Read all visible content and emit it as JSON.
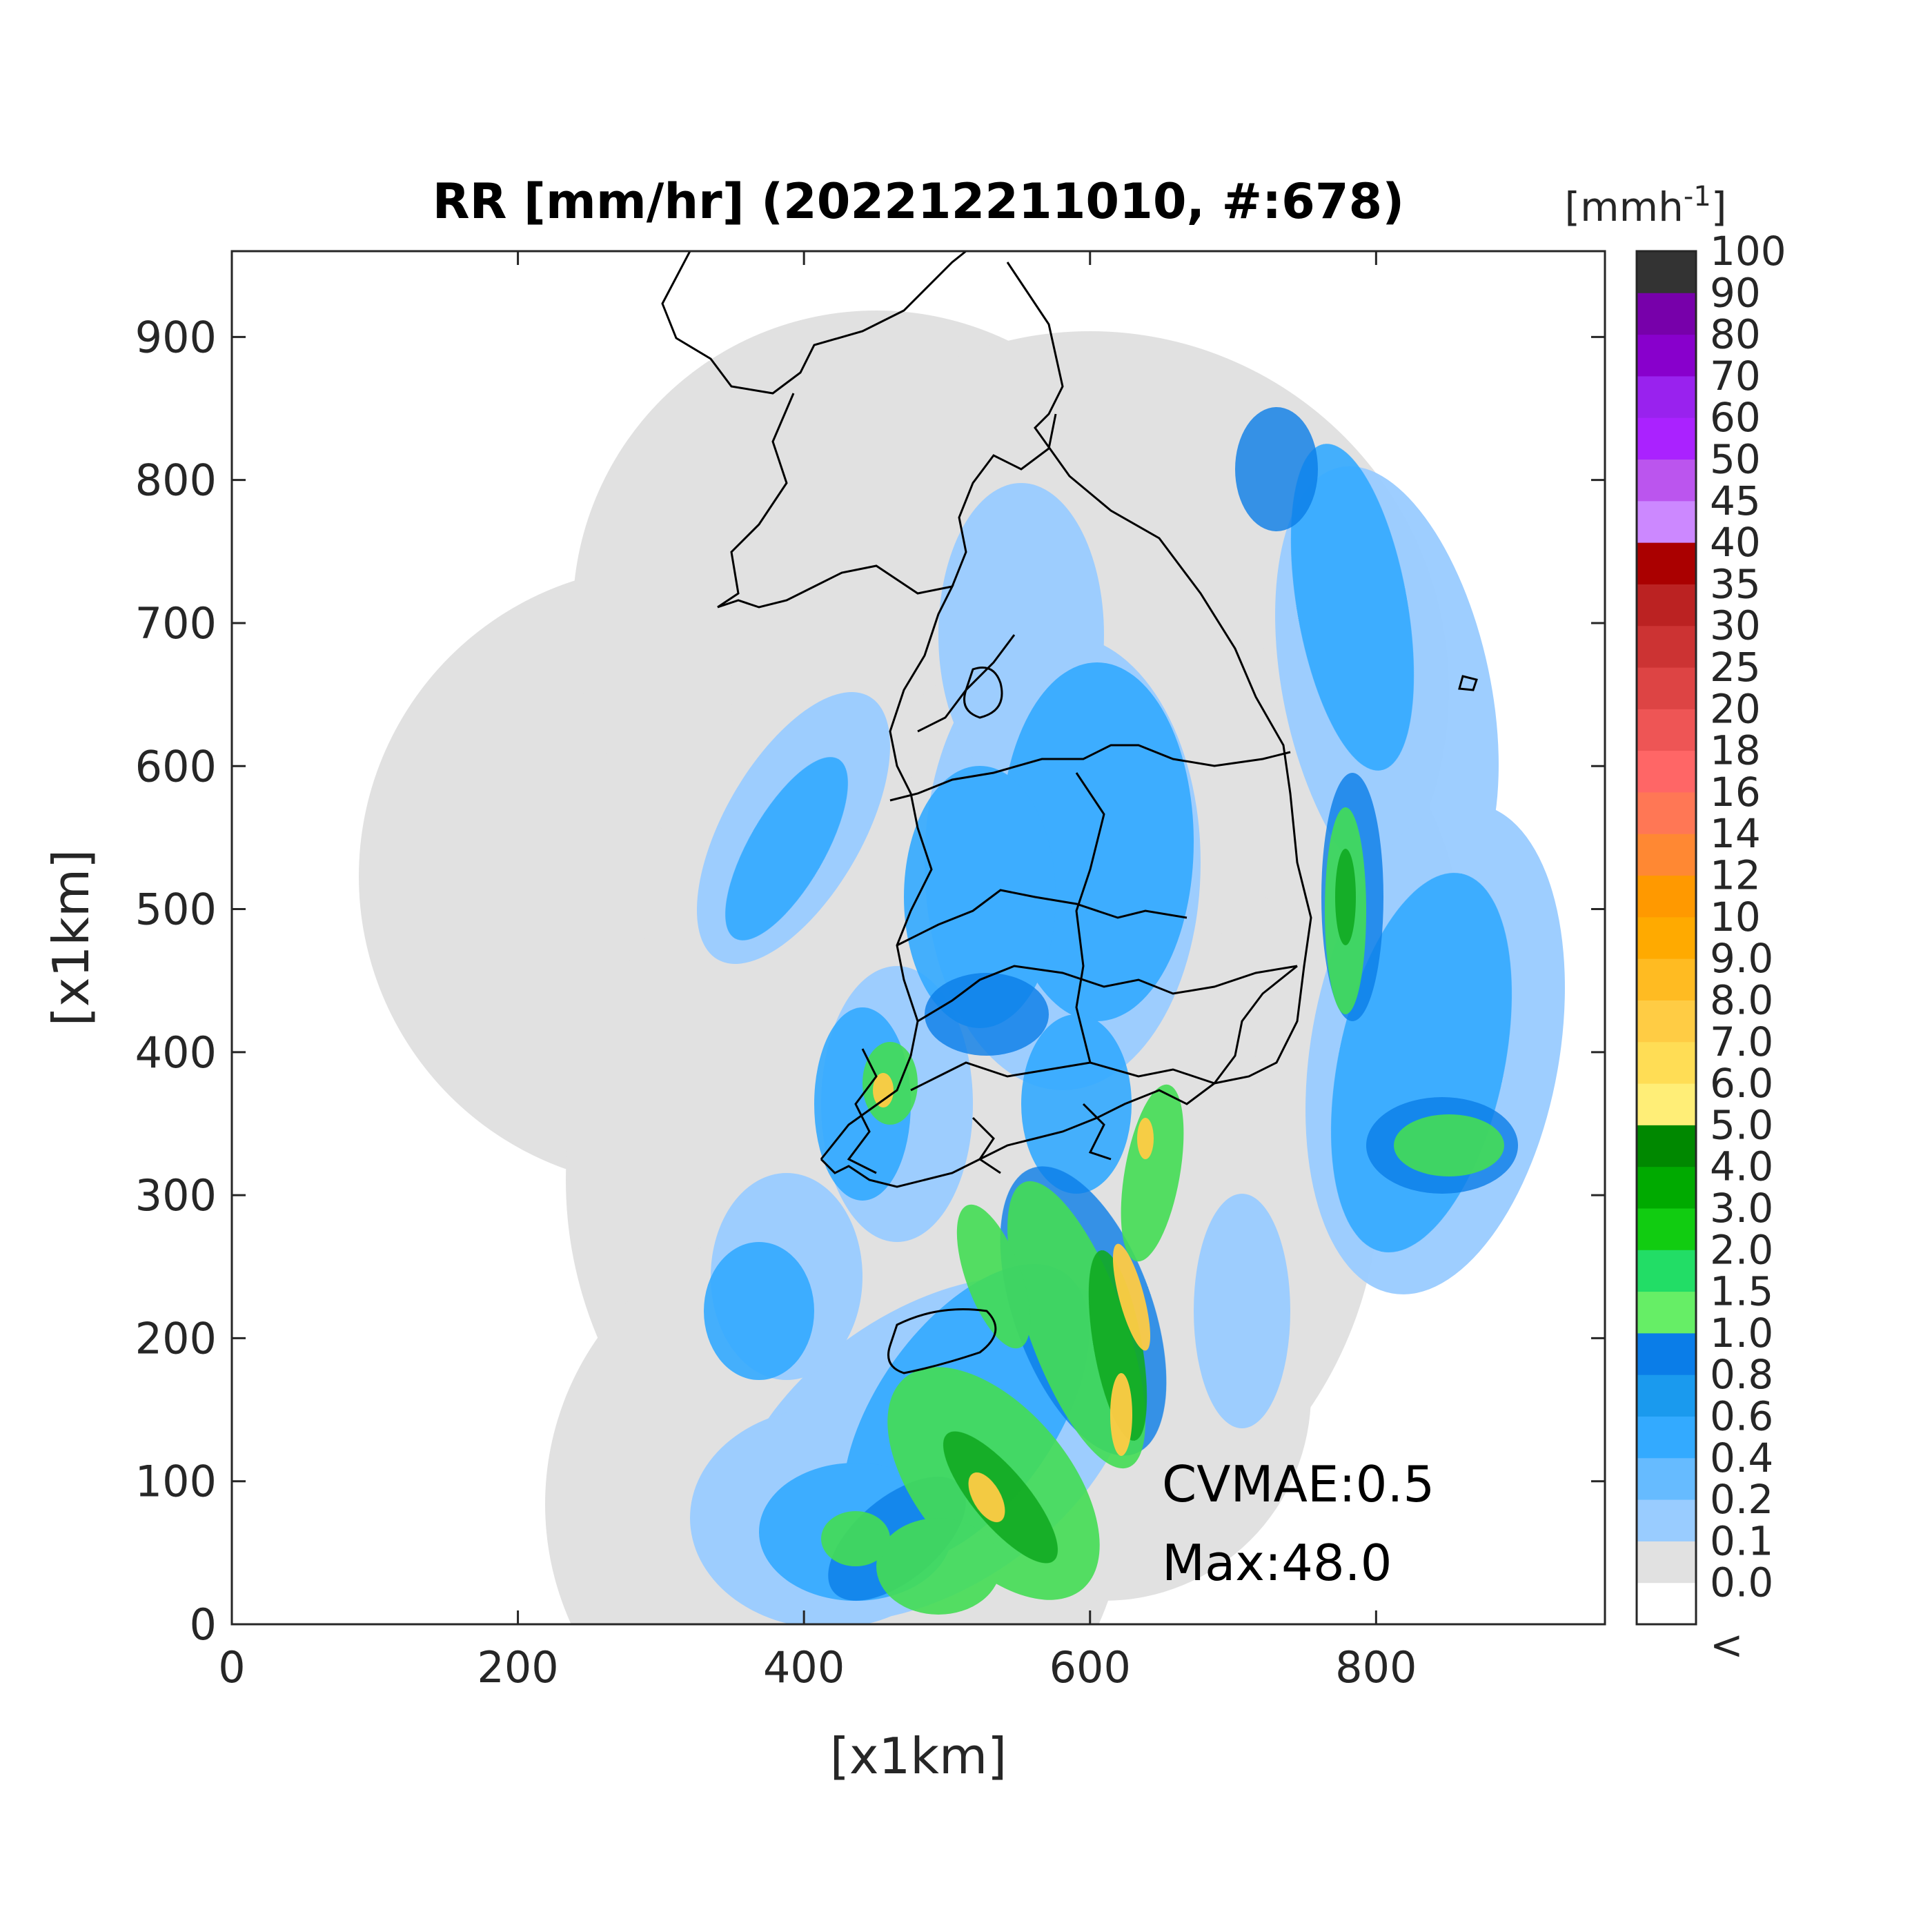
{
  "chart_data": {
    "type": "heatmap",
    "title": "RR [mm/hr] (202212211010, #:678)",
    "xlabel": "[x1km]",
    "ylabel": "[x1km]",
    "xlim": [
      0,
      960
    ],
    "ylim": [
      0,
      960
    ],
    "xticks": [
      0,
      200,
      400,
      600,
      800
    ],
    "yticks": [
      0,
      100,
      200,
      300,
      400,
      500,
      600,
      700,
      800,
      900
    ],
    "colorbar": {
      "unit_label": "[mmh",
      "unit_sup": "-1",
      "unit_close": "]",
      "labels": [
        "<",
        "0.0",
        "0.1",
        "0.2",
        "0.4",
        "0.6",
        "0.8",
        "1.0",
        "1.5",
        "2.0",
        "3.0",
        "4.0",
        "5.0",
        "6.0",
        "7.0",
        "8.0",
        "9.0",
        "10",
        "12",
        "14",
        "16",
        "18",
        "20",
        "25",
        "30",
        "35",
        "40",
        "45",
        "50",
        "60",
        "70",
        "80",
        "90",
        "100"
      ],
      "colors": [
        "#ffffff",
        "#e1e1e1",
        "#99ccff",
        "#66bbff",
        "#33aaff",
        "#1a9aee",
        "#0a7de8",
        "#66ee66",
        "#22dd66",
        "#11cc11",
        "#00aa00",
        "#008800",
        "#ffee77",
        "#ffdd55",
        "#ffcc44",
        "#ffbb22",
        "#ffaa00",
        "#ff9900",
        "#ff8833",
        "#ff7755",
        "#ff6666",
        "#ee5555",
        "#dd4444",
        "#cc3333",
        "#bb2222",
        "#aa0000",
        "#cc88ff",
        "#bb55ee",
        "#aa22ff",
        "#9922ee",
        "#8800cc",
        "#7700aa",
        "#333333"
      ]
    },
    "annotations": {
      "cvmae": "CVMAE:0.5",
      "max": "Max:48.0"
    }
  }
}
